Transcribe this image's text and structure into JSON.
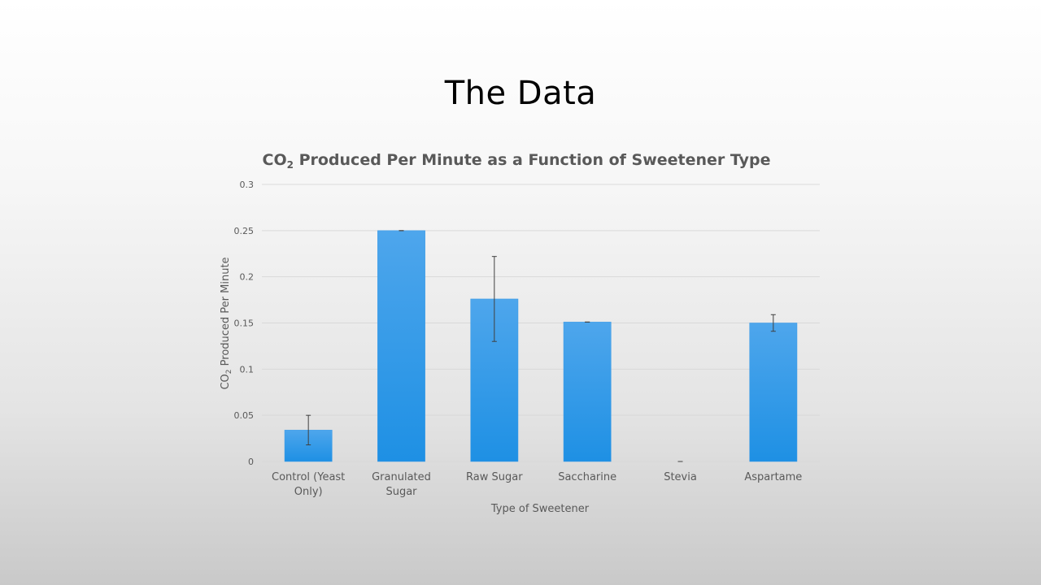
{
  "slide": {
    "title": "The Data"
  },
  "chart_data": {
    "type": "bar",
    "title_prefix": "CO",
    "title_sub": "2",
    "title_suffix": " Produced Per Minute as a Function of Sweetener Type",
    "xlabel": "Type of Sweetener",
    "ylabel_prefix": "CO",
    "ylabel_sub": "2",
    "ylabel_suffix": " Produced Per Minute",
    "categories": [
      [
        "Control (Yeast",
        "Only)"
      ],
      [
        "Granulated",
        "Sugar"
      ],
      [
        "Raw Sugar"
      ],
      [
        "Saccharine"
      ],
      [
        "Stevia"
      ],
      [
        "Aspartame"
      ]
    ],
    "values": [
      0.034,
      0.25,
      0.176,
      0.151,
      0,
      0.15
    ],
    "error": [
      0.016,
      0,
      0.046,
      0,
      0,
      0.009
    ],
    "ylim": [
      0,
      0.3
    ],
    "yticks": [
      "0",
      "0.05",
      "0.1",
      "0.15",
      "0.2",
      "0.25",
      "0.3"
    ],
    "ytick_values": [
      0,
      0.05,
      0.1,
      0.15,
      0.2,
      0.25,
      0.3
    ],
    "grid": true,
    "colors": {
      "bar_top": "#4ea6ec",
      "bar_bottom": "#1e90e4",
      "grid": "#d9d9d9",
      "error": "#404040"
    }
  }
}
